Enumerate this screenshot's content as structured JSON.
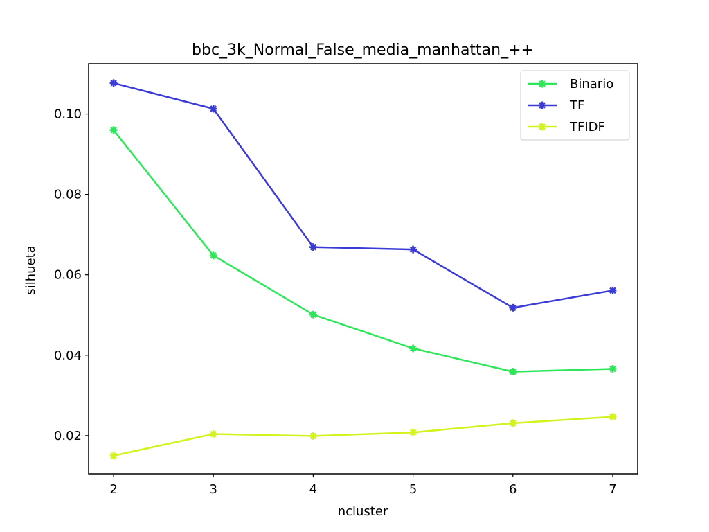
{
  "chart_data": {
    "type": "line",
    "title": "bbc_3k_Normal_False_media_manhattan_++",
    "xlabel": "ncluster",
    "ylabel": "silhueta",
    "x": [
      2,
      3,
      4,
      5,
      6,
      7
    ],
    "xlim": [
      1.75,
      7.25
    ],
    "ylim": [
      0.0105,
      0.1125
    ],
    "x_ticks": [
      2,
      3,
      4,
      5,
      6,
      7
    ],
    "y_ticks": [
      0.02,
      0.04,
      0.06,
      0.08,
      0.1
    ],
    "y_tick_labels": [
      "0.02",
      "0.04",
      "0.06",
      "0.08",
      "0.10"
    ],
    "grid": false,
    "legend_position": "top-right",
    "series": [
      {
        "name": "Binario",
        "color": "#2ee65a",
        "marker": "star-cross",
        "values": [
          0.096,
          0.0648,
          0.0501,
          0.0417,
          0.0359,
          0.0366
        ]
      },
      {
        "name": "TF",
        "color": "#3a3ad6",
        "marker": "star-cross",
        "values": [
          0.1077,
          0.1013,
          0.0669,
          0.0663,
          0.0518,
          0.0561
        ]
      },
      {
        "name": "TFIDF",
        "color": "#d4f21c",
        "marker": "star-cross",
        "values": [
          0.015,
          0.0204,
          0.0199,
          0.0208,
          0.0231,
          0.0247
        ]
      }
    ]
  }
}
